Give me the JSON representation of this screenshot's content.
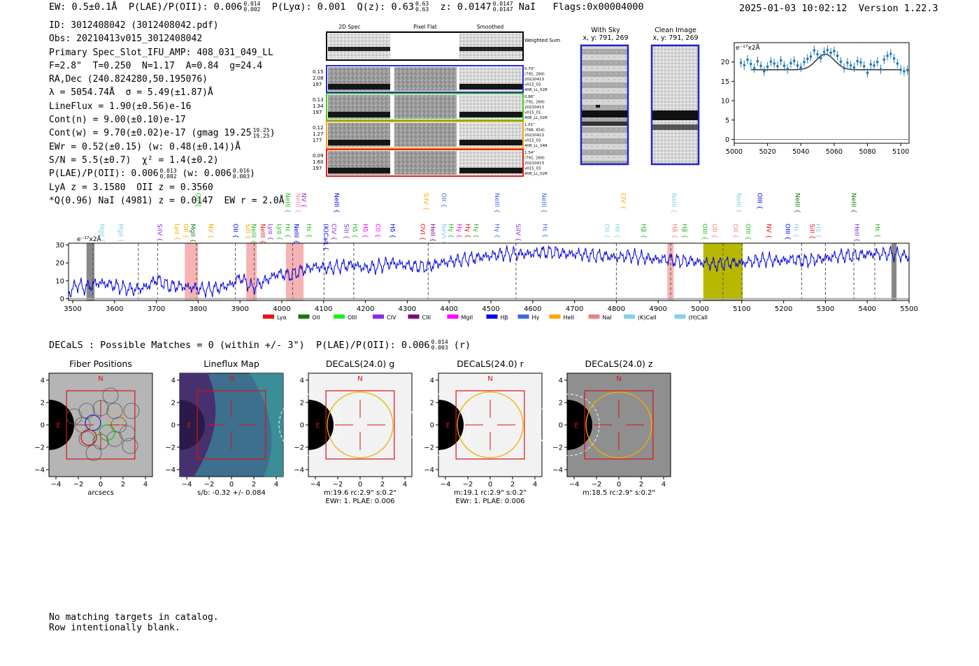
{
  "header": {
    "ew": "EW: 0.5±0.1Å",
    "plae_label": "P(LAE)/P(OII): 0.006",
    "plae_hi": "0.014",
    "plae_lo": "0.002",
    "plya": "P(Lyα): 0.001",
    "qz_label": "Q(z): 0.63",
    "qz_hi": "0.63",
    "qz_lo": "0.63",
    "z_label": "z: 0.0147",
    "z_hi": "0.0147",
    "z_lo": "0.0147",
    "z_line": "NaI",
    "flags": "Flags:0x00004000",
    "timestamp": "2025-01-03 10:02:12",
    "version": "Version 1.22.3"
  },
  "info": {
    "id": "ID: 3012408042 (3012408042.pdf)",
    "obs": "Obs: 20210413v015_3012408042",
    "primary": "Primary Spec_Slot_IFU_AMP: 408_031_049_LL",
    "fit": "F=2.8\"  T=0.250  N=1.17  A=0.84  g=24.4",
    "radec": "RA,Dec (240.824280,50.195076)",
    "lambda": "λ = 5054.74Å  σ = 5.49(±1.87)Å",
    "lineflux": "LineFlux = 1.90(±0.56)e-16",
    "contn": "Cont(n) = 9.00(±0.10)e-17",
    "contw": "Cont(w) = 9.70(±0.02)e-17 (gmag 19.25",
    "gmag_hi": "19.25",
    "gmag_lo": "19.25",
    "ewr": "EWr = 0.52(±0.15) (w: 0.48(±0.14))Å",
    "sn": "S/N = 5.5(±0.7)  χ² = 1.4(±0.2)",
    "plae2": "P(LAE)/P(OII): 0.006",
    "plae2_hi": "0.013",
    "plae2_lo": "0.002",
    "plae2_w": "(w: 0.006",
    "plae2_w_hi": "0.016",
    "plae2_w_lo": "0.003",
    "lya": "LyA z = 3.1580  OII z = 0.3560",
    "q": "*Q(0.96) NaI (4981) z = 0.0147  EW r = 2.0Å"
  },
  "cutouts": {
    "col_2d": "2D Spec",
    "col_flat": "Pixel Flat",
    "col_smooth": "Smoothed",
    "weighted": "Weighted Sum",
    "rows": [
      {
        "w1": "0.15",
        "w2": "2.08",
        "w3": "197",
        "d1": "0.70\"",
        "d2": "(791, 269)",
        "d3": "20210413",
        "d4": "v015_02",
        "d5": "408_LL_028",
        "color": "#2a2ad0"
      },
      {
        "w1": "0.13",
        "w2": "1.34",
        "w3": "197",
        "d1": "0.86\"",
        "d2": "(791, 269)",
        "d3": "20210413",
        "d4": "v015_01",
        "d5": "408_LL_028",
        "color": "#44cc22"
      },
      {
        "w1": "0.12",
        "w2": "1.27",
        "w3": "177",
        "d1": "1.01\"",
        "d2": "(788, 454)",
        "d3": "20210413",
        "d4": "v015_03",
        "d5": "408_LL_048",
        "color": "#f0a020"
      },
      {
        "w1": "0.09",
        "w2": "1.60",
        "w3": "197",
        "d1": "1.54\"",
        "d2": "(791, 269)",
        "d3": "20210413",
        "d4": "v015_03",
        "d5": "408_LL_028",
        "color": "#e02020"
      }
    ],
    "sky_title": "With Sky",
    "sky_coord": "x, y: 791, 269",
    "clean_title": "Clean Image",
    "clean_coord": "x, y: 791, 269"
  },
  "zoom_chart": {
    "type": "scatter",
    "unit": "e⁻¹⁷x2Å",
    "xlim": [
      5000,
      5105
    ],
    "ylim": [
      -1,
      25
    ],
    "xticks": [
      5000,
      5020,
      5040,
      5060,
      5080,
      5100
    ],
    "yticks": [
      0,
      5,
      10,
      15,
      20
    ],
    "fit_continuum": 18.0,
    "fit_center": 5054.7,
    "fit_sigma": 5.49,
    "fit_amp": 4.0,
    "x": [
      5004,
      5006,
      5008,
      5010,
      5012,
      5014,
      5016,
      5018,
      5020,
      5022,
      5024,
      5026,
      5028,
      5030,
      5032,
      5034,
      5036,
      5038,
      5040,
      5042,
      5044,
      5046,
      5048,
      5050,
      5052,
      5054,
      5056,
      5058,
      5060,
      5062,
      5064,
      5066,
      5068,
      5070,
      5072,
      5074,
      5076,
      5078,
      5080,
      5082,
      5084,
      5086,
      5088,
      5090,
      5092,
      5094,
      5096,
      5098,
      5100,
      5102,
      5104
    ],
    "y": [
      19.8,
      19.2,
      20.6,
      19.5,
      18.4,
      20.2,
      19.0,
      17.6,
      18.8,
      20.1,
      19.6,
      18.9,
      20.4,
      19.0,
      18.2,
      19.7,
      20.3,
      19.1,
      18.6,
      20.0,
      20.8,
      21.4,
      23.0,
      22.0,
      21.0,
      22.6,
      23.1,
      22.4,
      22.8,
      21.6,
      20.1,
      18.4,
      19.8,
      19.1,
      18.6,
      20.2,
      19.9,
      18.9,
      17.2,
      19.4,
      19.1,
      20.0,
      18.1,
      20.6,
      21.6,
      22.1,
      20.9,
      19.6,
      18.0,
      17.6,
      17.9
    ]
  },
  "main_spectrum": {
    "type": "line",
    "unit": "e⁻¹⁷x2Å",
    "xlim": [
      3490,
      5500
    ],
    "ylim": [
      -1,
      31
    ],
    "xticks": [
      3500,
      3600,
      3700,
      3800,
      3900,
      4000,
      4100,
      4200,
      4300,
      4400,
      4500,
      4600,
      4700,
      4800,
      4900,
      5000,
      5100,
      5200,
      5300,
      5400,
      5500
    ],
    "yticks": [
      0,
      10,
      20,
      30
    ],
    "red_bands": [
      [
        3768,
        3800
      ],
      [
        3915,
        3940
      ],
      [
        4010,
        4052
      ],
      [
        4922,
        4937
      ]
    ],
    "gray_bands": [
      [
        3533,
        3552
      ],
      [
        5458,
        5470
      ]
    ],
    "olive_band": [
      5008,
      5102
    ],
    "dashed_lines": [
      3548,
      3657,
      3703,
      3796,
      3889,
      3934,
      4026,
      4101,
      4172,
      4350,
      4560,
      4800,
      4930,
      5055,
      5100,
      5243,
      5300,
      5368,
      5418
    ],
    "anchors": {
      "x": [
        3490,
        3510,
        3530,
        3560,
        3590,
        3620,
        3650,
        3680,
        3700,
        3730,
        3760,
        3790,
        3820,
        3850,
        3880,
        3900,
        3930,
        3960,
        3990,
        4020,
        4050,
        4080,
        4110,
        4140,
        4170,
        4200,
        4230,
        4260,
        4290,
        4320,
        4350,
        4380,
        4410,
        4440,
        4470,
        4500,
        4530,
        4560,
        4590,
        4620,
        4650,
        4680,
        4710,
        4740,
        4770,
        4800,
        4830,
        4860,
        4890,
        4920,
        4950,
        4980,
        5010,
        5040,
        5070,
        5100,
        5130,
        5160,
        5190,
        5220,
        5250,
        5280,
        5310,
        5340,
        5370,
        5400,
        5430,
        5460,
        5490,
        5500
      ],
      "y": [
        3,
        8,
        6,
        9,
        8,
        6,
        5,
        7,
        11,
        7,
        7,
        6,
        5,
        6,
        8,
        12,
        6,
        10,
        14,
        13,
        16,
        18,
        17,
        18,
        19,
        17,
        18,
        20,
        19,
        18,
        18,
        20,
        21,
        22,
        23,
        24,
        25,
        25,
        25,
        26,
        26,
        25,
        25,
        24,
        24,
        23,
        24,
        23,
        22,
        22,
        21,
        21,
        20,
        19,
        20,
        20,
        21,
        22,
        21,
        22,
        21,
        22,
        23,
        24,
        24,
        25,
        25,
        25,
        24,
        23
      ]
    },
    "legend": [
      {
        "label": "Lyα",
        "color": "#ee1111"
      },
      {
        "label": "OII",
        "color": "#117a11"
      },
      {
        "label": "OIII",
        "color": "#22ee22"
      },
      {
        "label": "CIV",
        "color": "#8a2be2"
      },
      {
        "label": "CIII",
        "color": "#800080"
      },
      {
        "label": "MgII",
        "color": "#ff00ff"
      },
      {
        "label": "Hβ",
        "color": "#0000ee"
      },
      {
        "label": "Hγ",
        "color": "#4169e1"
      },
      {
        "label": "HeII",
        "color": "#ffa500"
      },
      {
        "label": "NaI",
        "color": "#f08080"
      },
      {
        "label": "(K)CaII",
        "color": "#87ceeb"
      },
      {
        "label": "(H)CaII",
        "color": "#87ceeb"
      }
    ],
    "line_labels_top": [
      {
        "label": "OII",
        "wave": 3795,
        "color": "#22bb22"
      },
      {
        "label": "NeIII",
        "wave": 4009,
        "color": "#22bb22"
      },
      {
        "label": "NeIII",
        "wave": 4034,
        "color": "#ff88aa"
      },
      {
        "label": "NV",
        "wave": 4048,
        "color": "#8a2be2"
      },
      {
        "label": "NeIII",
        "wave": 4126,
        "color": "#0000ee"
      },
      {
        "label": "SiIV",
        "wave": 4340,
        "color": "#ffa500"
      },
      {
        "label": "OII",
        "wave": 4383,
        "color": "#4169e1"
      },
      {
        "label": "NeIII",
        "wave": 4510,
        "color": "#4169e1"
      },
      {
        "label": "NeIII",
        "wave": 4622,
        "color": "#4169e1"
      },
      {
        "label": "CIV",
        "wave": 4812,
        "color": "#ffa500"
      },
      {
        "label": "NeIII",
        "wave": 4933,
        "color": "#87ceeb"
      },
      {
        "label": "NeIII",
        "wave": 5088,
        "color": "#87ceeb"
      },
      {
        "label": "OIII",
        "wave": 5138,
        "color": "#0000ee"
      },
      {
        "label": "NeIII",
        "wave": 5228,
        "color": "#117a11"
      },
      {
        "label": "NeIII",
        "wave": 5363,
        "color": "#117a11"
      }
    ],
    "line_labels_mid": [
      {
        "label": "MgII",
        "wave": 3565,
        "color": "#87ceeb"
      },
      {
        "label": "MgII",
        "wave": 3610,
        "color": "#87ceeb"
      },
      {
        "label": "SiIV",
        "wave": 3703,
        "color": "#8a2be2"
      },
      {
        "label": "Lyα",
        "wave": 3745,
        "color": "#ffa500"
      },
      {
        "label": "OII",
        "wave": 3766,
        "color": "#ffa500"
      },
      {
        "label": "MgII",
        "wave": 3783,
        "color": "#117a11"
      },
      {
        "label": "NV",
        "wave": 3825,
        "color": "#ffa500"
      },
      {
        "label": "OII",
        "wave": 3885,
        "color": "#0000ee"
      },
      {
        "label": "SiII",
        "wave": 3915,
        "color": "#ffa500"
      },
      {
        "label": "NeIII",
        "wave": 3928,
        "color": "#22bb22"
      },
      {
        "label": "NeIII",
        "wave": 3950,
        "color": "#ee1111"
      },
      {
        "label": "Lyα",
        "wave": 3968,
        "color": "#8a2be2"
      },
      {
        "label": "Lyα",
        "wave": 3990,
        "color": "#22bb22"
      },
      {
        "label": "Hε",
        "wave": 4009,
        "color": "#22bb22"
      },
      {
        "label": "NeIII",
        "wave": 4030,
        "color": "#0000ee"
      },
      {
        "label": "Hε",
        "wave": 4060,
        "color": "#22bb22"
      },
      {
        "label": "(K)CaII",
        "wave": 4100,
        "color": "#0000ee"
      },
      {
        "label": "CIV",
        "wave": 4120,
        "color": "#8a2be2"
      },
      {
        "label": "SiII",
        "wave": 4150,
        "color": "#8a2be2"
      },
      {
        "label": "Hδ",
        "wave": 4170,
        "color": "#22bb22"
      },
      {
        "label": "Hδ",
        "wave": 4195,
        "color": "#ff00ff"
      },
      {
        "label": "CII",
        "wave": 4225,
        "color": "#ff00ff"
      },
      {
        "label": "Hδ",
        "wave": 4260,
        "color": "#0000ee"
      },
      {
        "label": "OVI",
        "wave": 4332,
        "color": "#ee1111"
      },
      {
        "label": "HeII",
        "wave": 4356,
        "color": "#800080"
      },
      {
        "label": "NeVI",
        "wave": 4383,
        "color": "#87ceeb"
      },
      {
        "label": "Hγ",
        "wave": 4400,
        "color": "#22bb22"
      },
      {
        "label": "Hγ",
        "wave": 4420,
        "color": "#ff00ff"
      },
      {
        "label": "Hγ",
        "wave": 4440,
        "color": "#ee1111"
      },
      {
        "label": "Hγ",
        "wave": 4460,
        "color": "#22bb22"
      },
      {
        "label": "Hγ",
        "wave": 4510,
        "color": "#4169e1"
      },
      {
        "label": "SiIV",
        "wave": 4560,
        "color": "#8a2be2"
      },
      {
        "label": "Hε",
        "wave": 4625,
        "color": "#4169e1"
      },
      {
        "label": "OII",
        "wave": 4773,
        "color": "#87ceeb"
      },
      {
        "label": "Hδ",
        "wave": 4798,
        "color": "#87ceeb"
      },
      {
        "label": "Hβ",
        "wave": 4860,
        "color": "#22bb22"
      },
      {
        "label": "Hβ",
        "wave": 4935,
        "color": "#f08080"
      },
      {
        "label": "Hβ",
        "wave": 4958,
        "color": "#22bb22"
      },
      {
        "label": "OIII",
        "wave": 5007,
        "color": "#22bb22"
      },
      {
        "label": "OII",
        "wave": 5030,
        "color": "#f08080"
      },
      {
        "label": "OII",
        "wave": 5080,
        "color": "#f08080"
      },
      {
        "label": "OIII",
        "wave": 5110,
        "color": "#22bb22"
      },
      {
        "label": "NV",
        "wave": 5160,
        "color": "#ee1111"
      },
      {
        "label": "OIII",
        "wave": 5205,
        "color": "#0000ee"
      },
      {
        "label": "Hε",
        "wave": 5225,
        "color": "#87ceeb"
      },
      {
        "label": "SiII",
        "wave": 5263,
        "color": "#ee1111"
      },
      {
        "label": "Hδ",
        "wave": 5278,
        "color": "#87ceeb"
      },
      {
        "label": "HeII",
        "wave": 5370,
        "color": "#8a2be2"
      },
      {
        "label": "Hε",
        "wave": 5420,
        "color": "#22bb22"
      }
    ]
  },
  "decals": {
    "line": "DECaLS : Possible Matches = 0 (within +/- 3\")  P(LAE)/P(OII): 0.006",
    "hi": "0.014",
    "lo": "0.003",
    "band": "(r)"
  },
  "thumbnails": [
    {
      "title": "Fiber Positions",
      "caption1": "arcsecs",
      "caption2": ""
    },
    {
      "title": "Lineflux Map",
      "caption1": "s/b: -0.32 +/- 0.084",
      "caption2": ""
    },
    {
      "title": "DECaLS(24.0) g",
      "caption1": "m:19.6 rc:2.9\"  s:0.2\"",
      "caption2": "EWr: 1. PLAE: 0.006"
    },
    {
      "title": "DECaLS(24.0) r",
      "caption1": "m:19.1 rc:2.9\"  s:0.2\"",
      "caption2": "EWr: 1. PLAE: 0.006"
    },
    {
      "title": "DECaLS(24.0) z",
      "caption1": "m:18.5 rc:2.9\"  s:0.2\"",
      "caption2": ""
    }
  ],
  "thumb_axes": {
    "ticks": [
      "−4",
      "−2",
      "0",
      "2",
      "4"
    ],
    "north": "N",
    "east": "E"
  },
  "footer": {
    "line1": "No matching targets in catalog.",
    "line2": "Row intentionally blank."
  }
}
